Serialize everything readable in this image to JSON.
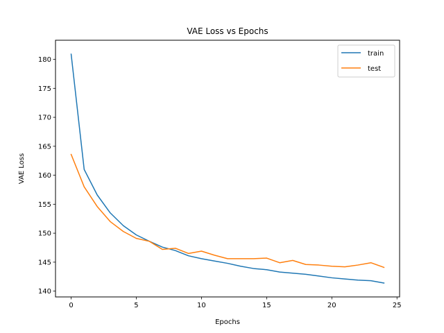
{
  "chart_data": {
    "type": "line",
    "title": "VAE Loss vs Epochs",
    "xlabel": "Epochs",
    "ylabel": "VAE Loss",
    "xlim": [
      -1.2,
      25.2
    ],
    "ylim": [
      139.0,
      183.3
    ],
    "xticks": [
      0,
      5,
      10,
      15,
      20,
      25
    ],
    "yticks": [
      140,
      145,
      150,
      155,
      160,
      165,
      170,
      175,
      180
    ],
    "x": [
      0,
      1,
      2,
      3,
      4,
      5,
      6,
      7,
      8,
      9,
      10,
      11,
      12,
      13,
      14,
      15,
      16,
      17,
      18,
      19,
      20,
      21,
      22,
      23,
      24
    ],
    "series": [
      {
        "name": "train",
        "color": "#1f77b4",
        "values": [
          180.9,
          161.0,
          156.6,
          153.5,
          151.3,
          149.7,
          148.6,
          147.6,
          147.0,
          146.1,
          145.6,
          145.2,
          144.8,
          144.3,
          143.9,
          143.7,
          143.3,
          143.1,
          142.9,
          142.6,
          142.3,
          142.1,
          141.9,
          141.8,
          141.4
        ]
      },
      {
        "name": "test",
        "color": "#ff7f0e",
        "values": [
          163.6,
          158.0,
          154.6,
          152.0,
          150.3,
          149.1,
          148.6,
          147.2,
          147.4,
          146.5,
          146.9,
          146.2,
          145.6,
          145.6,
          145.6,
          145.7,
          144.9,
          145.3,
          144.6,
          144.5,
          144.3,
          144.2,
          144.5,
          144.9,
          144.1
        ]
      }
    ],
    "grid": false,
    "legend_position": "top-right"
  }
}
